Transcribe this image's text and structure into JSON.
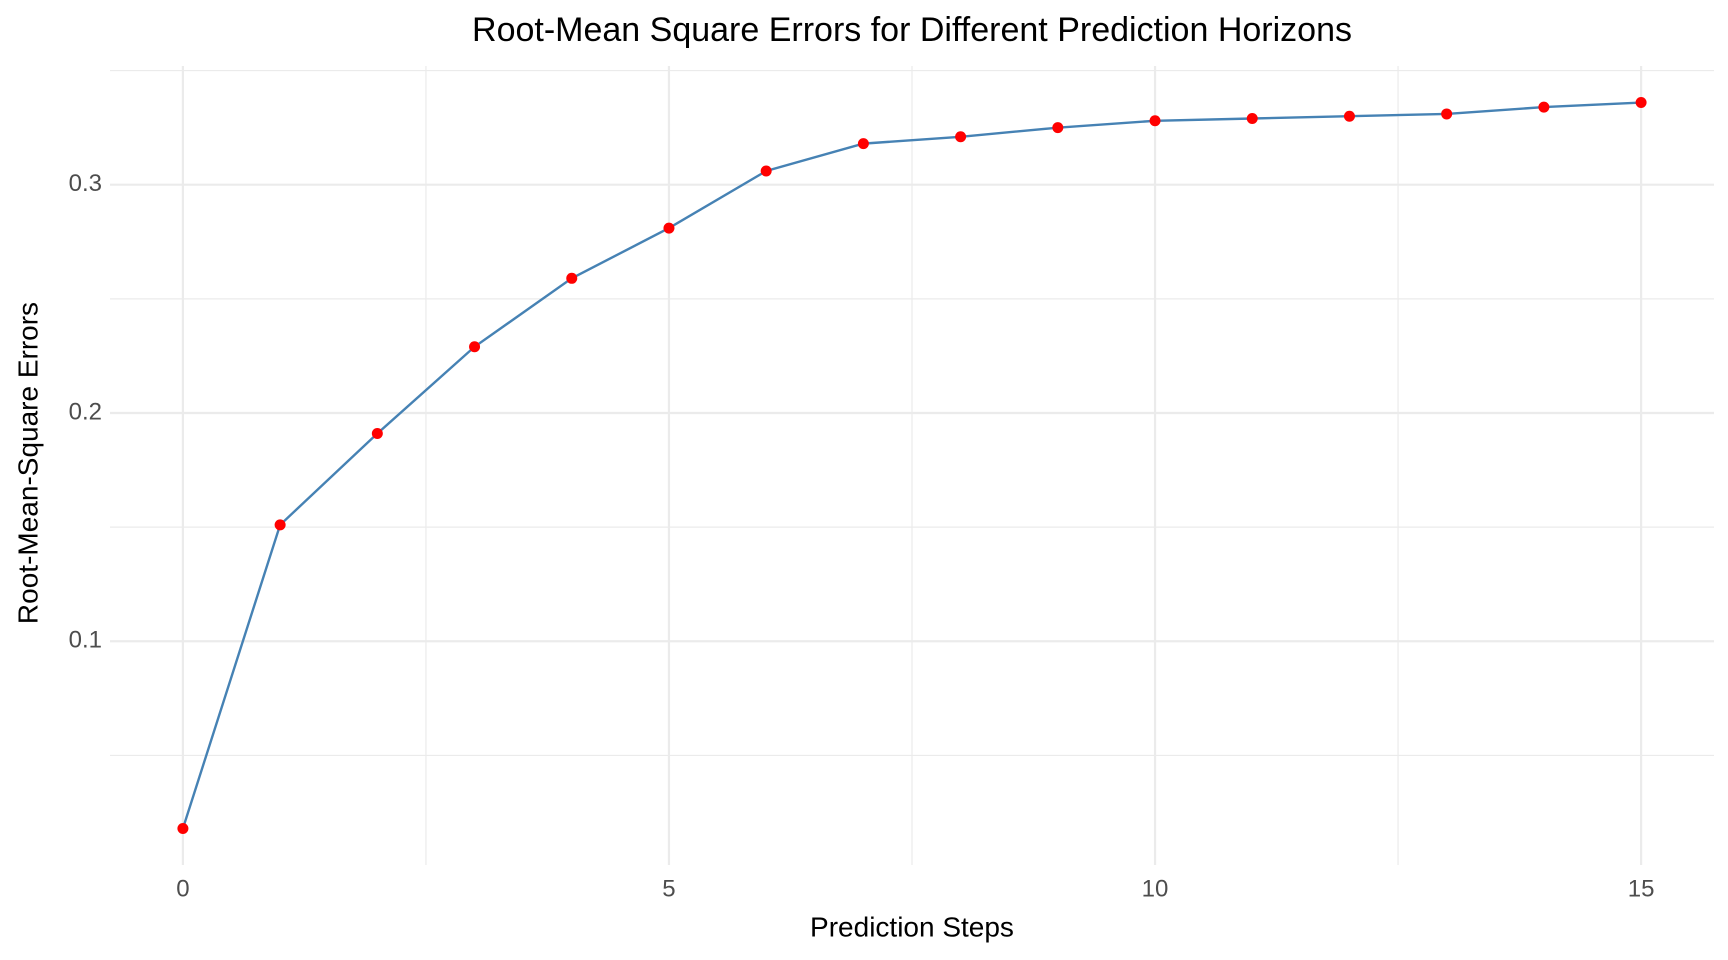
{
  "chart_data": {
    "type": "line",
    "title": "Root-Mean Square Errors for Different Prediction Horizons",
    "x_label": "Prediction Steps",
    "y_label": "Root-Mean-Square Errors",
    "x": [
      0,
      1,
      2,
      3,
      4,
      5,
      6,
      7,
      8,
      9,
      10,
      11,
      12,
      13,
      14,
      15
    ],
    "series": [
      {
        "line_color": "#4682b4",
        "color": "#ff0000",
        "values": [
          0.018,
          0.151,
          0.191,
          0.229,
          0.259,
          0.281,
          0.306,
          0.318,
          0.321,
          0.325,
          0.328,
          0.329,
          0.33,
          0.331,
          0.334,
          0.336
        ]
      }
    ],
    "xlim": [
      -0.75,
      15.75
    ],
    "xticks": [
      0,
      5,
      10,
      15
    ],
    "x_minor_ticks": [
      2.5,
      7.5,
      12.5
    ],
    "ylim": [
      0.002,
      0.352
    ],
    "yticks": [
      0.1,
      0.2,
      0.3
    ],
    "y_minor_ticks": [
      0.05,
      0.15,
      0.25,
      0.35
    ],
    "grid": true
  }
}
